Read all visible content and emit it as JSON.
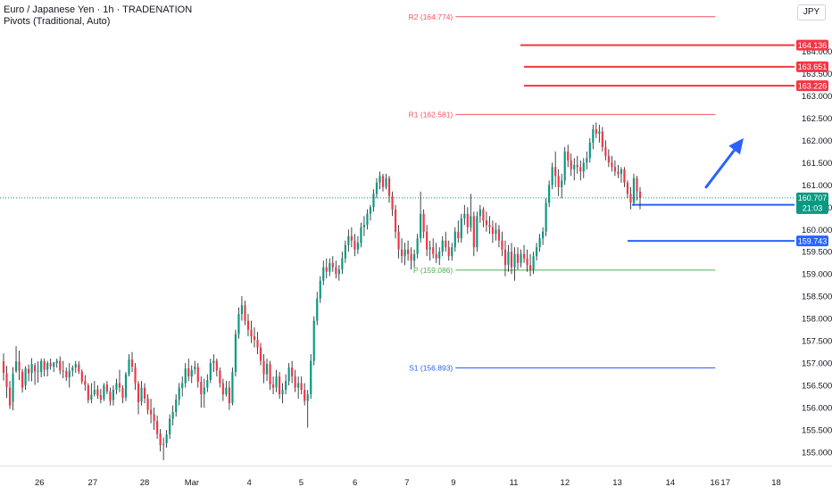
{
  "header": {
    "title": "Euro / Japanese Yen · 1h · TRADENATION",
    "indicator": "Pivots (Traditional, Auto)"
  },
  "currency_button": "JPY",
  "colors": {
    "up": "#089981",
    "down": "#f23645",
    "wick": "#131722",
    "support": "#2962ff",
    "resistance": "#f23645",
    "pivot_r": "#f7525f",
    "pivot_p": "#4caf50",
    "pivot_s": "#2962ff",
    "arrow": "#2962ff",
    "last_price_bg": "#089981",
    "axis_text": "#131722"
  },
  "chart_data": {
    "type": "candlestick",
    "y_axis": {
      "ylim": [
        154.7,
        165.15
      ],
      "ticks": [
        "155.000",
        "155.500",
        "156.000",
        "156.500",
        "157.000",
        "157.500",
        "158.000",
        "158.500",
        "159.000",
        "159.500",
        "160.000",
        "160.500",
        "161.000",
        "161.500",
        "162.000",
        "162.500",
        "163.000",
        "163.500",
        "164.000"
      ]
    },
    "x_axis": {
      "labels": [
        {
          "label": "26",
          "pos": 0.0475
        },
        {
          "label": "27",
          "pos": 0.1114
        },
        {
          "label": "28",
          "pos": 0.1738
        },
        {
          "label": "Mar",
          "pos": 0.2306
        },
        {
          "label": "4",
          "pos": 0.2995
        },
        {
          "label": "5",
          "pos": 0.362
        },
        {
          "label": "6",
          "pos": 0.4266
        },
        {
          "label": "7",
          "pos": 0.4891
        },
        {
          "label": "9",
          "pos": 0.545
        },
        {
          "label": "11",
          "pos": 0.6175
        },
        {
          "label": "12",
          "pos": 0.679
        },
        {
          "label": "13",
          "pos": 0.742
        },
        {
          "label": "14",
          "pos": 0.8057
        },
        {
          "label": "16",
          "pos": 0.8591
        },
        {
          "label": "17",
          "pos": 0.872
        },
        {
          "label": "18",
          "pos": 0.933
        }
      ]
    },
    "pivots": [
      {
        "label": "R2 (164.774)",
        "value": 164.774,
        "start": 0.5475,
        "end": 0.8598,
        "kind": "r"
      },
      {
        "label": "R1 (162.581)",
        "value": 162.581,
        "start": 0.5475,
        "end": 0.8598,
        "kind": "r"
      },
      {
        "label": "P (159.086)",
        "value": 159.086,
        "start": 0.5475,
        "end": 0.8598,
        "kind": "p"
      },
      {
        "label": "S1 (156.893)",
        "value": 156.893,
        "start": 0.5475,
        "end": 0.8598,
        "kind": "s"
      }
    ],
    "levels": [
      {
        "value": 164.136,
        "label": "164.136",
        "start": 0.6255,
        "kind": "resistance"
      },
      {
        "value": 163.651,
        "label": "163.651",
        "start": 0.6298,
        "kind": "resistance"
      },
      {
        "value": 163.226,
        "label": "163.226",
        "start": 0.6298,
        "kind": "resistance"
      },
      {
        "value": 160.554,
        "label": "160.554",
        "start": 0.7597,
        "kind": "support"
      },
      {
        "value": 159.743,
        "label": "159.743",
        "start": 0.7543,
        "kind": "support"
      }
    ],
    "last_price": {
      "value": 160.707,
      "label": "160.707",
      "countdown": "21:03"
    },
    "arrow": {
      "from": [
        0.8487,
        160.95
      ],
      "to": [
        0.8937,
        162.05
      ]
    },
    "candles": [
      [
        157.04,
        157.22,
        156.61,
        156.78
      ],
      [
        156.77,
        156.94,
        156.22,
        156.46
      ],
      [
        156.45,
        156.6,
        155.97,
        156.05
      ],
      [
        156.13,
        156.91,
        155.94,
        156.76
      ],
      [
        156.82,
        157.38,
        156.78,
        157.04
      ],
      [
        157.03,
        157.28,
        156.62,
        156.83
      ],
      [
        156.81,
        156.87,
        156.34,
        156.45
      ],
      [
        156.5,
        156.93,
        156.4,
        156.88
      ],
      [
        156.87,
        156.97,
        156.59,
        156.77
      ],
      [
        156.78,
        157.11,
        156.59,
        156.98
      ],
      [
        156.95,
        157.0,
        156.51,
        156.81
      ],
      [
        156.81,
        157.04,
        156.56,
        156.83
      ],
      [
        156.8,
        157.1,
        156.68,
        157.05
      ],
      [
        157.04,
        157.1,
        156.7,
        156.85
      ],
      [
        156.85,
        157.05,
        156.7,
        157.0
      ],
      [
        157.0,
        157.1,
        156.85,
        156.93
      ],
      [
        156.92,
        157.0,
        156.8,
        157.02
      ],
      [
        157.0,
        157.1,
        156.9,
        157.05
      ],
      [
        157.05,
        157.15,
        156.75,
        156.83
      ],
      [
        156.83,
        157.05,
        156.66,
        156.82
      ],
      [
        156.82,
        156.9,
        156.6,
        156.68
      ],
      [
        156.68,
        157.0,
        156.45,
        156.83
      ],
      [
        156.83,
        156.95,
        156.7,
        156.9
      ],
      [
        156.9,
        157.05,
        156.78,
        156.98
      ],
      [
        156.97,
        157.04,
        156.76,
        156.81
      ],
      [
        156.81,
        156.86,
        156.53,
        156.59
      ],
      [
        156.6,
        156.73,
        156.38,
        156.51
      ],
      [
        156.5,
        156.55,
        156.1,
        156.17
      ],
      [
        156.18,
        156.55,
        156.1,
        156.29
      ],
      [
        156.3,
        156.6,
        156.25,
        156.4
      ],
      [
        156.41,
        156.5,
        156.2,
        156.27
      ],
      [
        156.28,
        156.42,
        156.1,
        156.18
      ],
      [
        156.2,
        156.55,
        156.15,
        156.5
      ],
      [
        156.52,
        156.6,
        156.3,
        156.36
      ],
      [
        156.36,
        156.45,
        156.05,
        156.15
      ],
      [
        156.17,
        156.5,
        156.05,
        156.4
      ],
      [
        156.4,
        156.65,
        156.3,
        156.55
      ],
      [
        156.55,
        156.85,
        156.35,
        156.45
      ],
      [
        156.44,
        156.5,
        156.1,
        156.22
      ],
      [
        156.23,
        156.8,
        156.15,
        156.75
      ],
      [
        156.75,
        157.2,
        156.7,
        157.08
      ],
      [
        157.08,
        157.25,
        156.8,
        156.92
      ],
      [
        156.91,
        157.0,
        156.4,
        156.55
      ],
      [
        156.54,
        156.6,
        155.85,
        156.12
      ],
      [
        156.14,
        156.6,
        156.05,
        156.45
      ],
      [
        156.45,
        156.55,
        156.1,
        156.2
      ],
      [
        156.21,
        156.3,
        155.85,
        155.95
      ],
      [
        155.95,
        156.2,
        155.65,
        155.85
      ],
      [
        155.85,
        156.0,
        155.5,
        155.7
      ],
      [
        155.7,
        155.82,
        155.3,
        155.41
      ],
      [
        155.42,
        155.52,
        155.02,
        155.16
      ],
      [
        155.17,
        155.33,
        154.82,
        155.19
      ],
      [
        155.2,
        155.5,
        155.1,
        155.4
      ],
      [
        155.4,
        155.85,
        155.3,
        155.75
      ],
      [
        155.75,
        156.05,
        155.6,
        155.9
      ],
      [
        155.9,
        156.3,
        155.8,
        156.18
      ],
      [
        156.18,
        156.55,
        156.05,
        156.45
      ],
      [
        156.44,
        156.7,
        156.25,
        156.55
      ],
      [
        156.55,
        157.0,
        156.45,
        156.88
      ],
      [
        156.88,
        157.1,
        156.6,
        156.7
      ],
      [
        156.7,
        156.95,
        156.55,
        156.85
      ],
      [
        156.86,
        157.05,
        156.75,
        156.92
      ],
      [
        156.91,
        157.0,
        156.45,
        156.58
      ],
      [
        156.58,
        156.7,
        156.0,
        156.3
      ],
      [
        156.3,
        156.65,
        156.0,
        156.45
      ],
      [
        156.45,
        156.75,
        156.35,
        156.62
      ],
      [
        156.62,
        157.1,
        156.55,
        157.0
      ],
      [
        157.0,
        157.2,
        156.8,
        157.05
      ],
      [
        157.05,
        157.1,
        156.7,
        156.83
      ],
      [
        156.83,
        156.9,
        156.45,
        156.55
      ],
      [
        156.55,
        156.65,
        156.15,
        156.3
      ],
      [
        156.3,
        156.6,
        156.25,
        156.45
      ],
      [
        156.45,
        156.6,
        155.95,
        156.1
      ],
      [
        156.1,
        156.9,
        156.05,
        156.8
      ],
      [
        156.8,
        157.75,
        156.7,
        157.65
      ],
      [
        157.65,
        158.25,
        157.55,
        158.1
      ],
      [
        158.1,
        158.5,
        157.95,
        158.3
      ],
      [
        158.3,
        158.4,
        157.85,
        157.95
      ],
      [
        157.95,
        158.1,
        157.6,
        157.75
      ],
      [
        157.75,
        157.95,
        157.45,
        157.6
      ],
      [
        157.6,
        157.8,
        157.35,
        157.52
      ],
      [
        157.52,
        157.7,
        157.2,
        157.35
      ],
      [
        157.35,
        157.45,
        156.95,
        157.05
      ],
      [
        157.05,
        157.2,
        156.55,
        156.75
      ],
      [
        156.75,
        157.1,
        156.6,
        156.98
      ],
      [
        156.98,
        157.05,
        156.4,
        156.52
      ],
      [
        156.52,
        156.7,
        156.3,
        156.45
      ],
      [
        156.45,
        156.85,
        156.35,
        156.7
      ],
      [
        156.7,
        156.8,
        156.2,
        156.3
      ],
      [
        156.3,
        156.55,
        156.1,
        156.4
      ],
      [
        156.4,
        156.75,
        156.3,
        156.6
      ],
      [
        156.6,
        157.0,
        156.5,
        156.9
      ],
      [
        156.9,
        157.05,
        156.55,
        156.7
      ],
      [
        156.7,
        156.85,
        156.35,
        156.45
      ],
      [
        156.45,
        156.7,
        156.2,
        156.55
      ],
      [
        156.55,
        156.7,
        156.3,
        156.4
      ],
      [
        156.4,
        156.55,
        156.05,
        156.15
      ],
      [
        156.15,
        156.4,
        155.55,
        156.3
      ],
      [
        156.3,
        157.2,
        156.2,
        157.05
      ],
      [
        157.05,
        158.05,
        156.95,
        157.95
      ],
      [
        157.95,
        158.6,
        157.85,
        158.45
      ],
      [
        158.45,
        158.95,
        158.35,
        158.85
      ],
      [
        158.85,
        159.3,
        158.75,
        159.15
      ],
      [
        159.15,
        159.35,
        158.9,
        159.05
      ],
      [
        159.05,
        159.35,
        158.95,
        159.25
      ],
      [
        159.25,
        159.4,
        159.05,
        159.15
      ],
      [
        159.15,
        159.3,
        158.9,
        159.0
      ],
      [
        159.0,
        159.2,
        158.85,
        159.1
      ],
      [
        159.1,
        159.5,
        159.0,
        159.35
      ],
      [
        159.35,
        159.75,
        159.25,
        159.65
      ],
      [
        159.65,
        160.0,
        159.5,
        159.85
      ],
      [
        159.85,
        160.05,
        159.6,
        159.75
      ],
      [
        159.75,
        159.9,
        159.4,
        159.55
      ],
      [
        159.55,
        159.85,
        159.45,
        159.7
      ],
      [
        159.7,
        160.15,
        159.6,
        160.05
      ],
      [
        160.05,
        160.3,
        159.85,
        160.1
      ],
      [
        160.1,
        160.45,
        160.0,
        160.35
      ],
      [
        160.35,
        160.55,
        160.2,
        160.5
      ],
      [
        160.5,
        160.9,
        160.4,
        160.8
      ],
      [
        160.8,
        161.15,
        160.7,
        161.05
      ],
      [
        161.05,
        161.3,
        160.9,
        161.2
      ],
      [
        161.2,
        161.25,
        160.85,
        160.95
      ],
      [
        160.95,
        161.25,
        160.9,
        161.15
      ],
      [
        161.15,
        161.2,
        160.6,
        160.75
      ],
      [
        160.75,
        160.85,
        160.3,
        160.45
      ],
      [
        160.45,
        160.55,
        159.8,
        159.95
      ],
      [
        159.95,
        160.1,
        159.35,
        159.55
      ],
      [
        159.55,
        159.8,
        159.25,
        159.4
      ],
      [
        159.4,
        159.7,
        159.2,
        159.55
      ],
      [
        159.55,
        159.75,
        159.3,
        159.45
      ],
      [
        159.45,
        159.6,
        159.1,
        159.3
      ],
      [
        159.3,
        159.55,
        159.15,
        159.45
      ],
      [
        159.45,
        159.9,
        159.35,
        159.8
      ],
      [
        159.8,
        160.85,
        159.7,
        160.35
      ],
      [
        160.35,
        160.45,
        159.8,
        159.95
      ],
      [
        159.95,
        160.1,
        159.4,
        159.55
      ],
      [
        159.55,
        159.75,
        159.3,
        159.6
      ],
      [
        159.6,
        159.8,
        159.35,
        159.45
      ],
      [
        159.45,
        159.7,
        159.25,
        159.35
      ],
      [
        159.35,
        159.6,
        159.2,
        159.5
      ],
      [
        159.5,
        159.85,
        159.4,
        159.75
      ],
      [
        159.75,
        159.95,
        159.5,
        159.6
      ],
      [
        159.6,
        159.75,
        159.3,
        159.4
      ],
      [
        159.4,
        159.7,
        159.3,
        159.6
      ],
      [
        159.6,
        160.05,
        159.5,
        159.95
      ],
      [
        159.95,
        160.2,
        159.7,
        159.8
      ],
      [
        159.8,
        160.35,
        159.7,
        160.25
      ],
      [
        160.25,
        160.55,
        160.1,
        160.35
      ],
      [
        160.35,
        160.5,
        159.9,
        160.05
      ],
      [
        160.05,
        160.8,
        159.95,
        160.3
      ],
      [
        160.3,
        160.4,
        159.4,
        159.6
      ],
      [
        159.6,
        160.4,
        159.5,
        160.3
      ],
      [
        160.3,
        160.55,
        160.15,
        160.45
      ],
      [
        160.45,
        160.5,
        160.05,
        160.2
      ],
      [
        160.2,
        160.4,
        159.95,
        160.1
      ],
      [
        160.1,
        160.3,
        159.9,
        160.05
      ],
      [
        160.05,
        160.2,
        159.7,
        159.9
      ],
      [
        159.9,
        160.15,
        159.75,
        160.0
      ],
      [
        160.0,
        160.1,
        159.6,
        159.75
      ],
      [
        159.75,
        159.95,
        159.4,
        159.55
      ],
      [
        159.55,
        159.75,
        158.95,
        159.2
      ],
      [
        159.2,
        159.65,
        159.05,
        159.5
      ],
      [
        159.5,
        159.7,
        159.0,
        159.15
      ],
      [
        159.15,
        159.6,
        158.85,
        159.45
      ],
      [
        159.45,
        159.6,
        159.1,
        159.25
      ],
      [
        159.25,
        159.55,
        159.15,
        159.45
      ],
      [
        159.45,
        159.65,
        159.25,
        159.35
      ],
      [
        159.35,
        159.55,
        159.05,
        159.2
      ],
      [
        159.2,
        159.45,
        158.95,
        159.1
      ],
      [
        159.1,
        159.5,
        159.0,
        159.4
      ],
      [
        159.4,
        159.7,
        159.3,
        159.6
      ],
      [
        159.6,
        159.9,
        159.5,
        159.8
      ],
      [
        159.8,
        160.05,
        159.65,
        159.95
      ],
      [
        159.95,
        160.7,
        159.85,
        160.6
      ],
      [
        160.6,
        161.1,
        160.5,
        161.0
      ],
      [
        161.0,
        161.5,
        160.9,
        161.4
      ],
      [
        161.4,
        161.75,
        160.95,
        161.2
      ],
      [
        161.2,
        161.35,
        160.75,
        160.95
      ],
      [
        160.95,
        161.25,
        160.7,
        161.1
      ],
      [
        161.1,
        161.85,
        161.0,
        161.75
      ],
      [
        161.75,
        161.9,
        161.4,
        161.55
      ],
      [
        161.55,
        161.7,
        161.2,
        161.35
      ],
      [
        161.35,
        161.6,
        161.1,
        161.45
      ],
      [
        161.45,
        161.65,
        161.25,
        161.4
      ],
      [
        161.4,
        161.55,
        161.1,
        161.3
      ],
      [
        161.3,
        161.6,
        161.15,
        161.5
      ],
      [
        161.5,
        161.75,
        161.35,
        161.6
      ],
      [
        161.6,
        162.05,
        161.5,
        161.95
      ],
      [
        161.95,
        162.35,
        161.8,
        162.25
      ],
      [
        162.25,
        162.4,
        162.05,
        162.15
      ],
      [
        162.15,
        162.35,
        161.95,
        162.2
      ],
      [
        162.2,
        162.3,
        161.75,
        161.85
      ],
      [
        161.85,
        162.0,
        161.55,
        161.65
      ],
      [
        161.65,
        161.8,
        161.4,
        161.5
      ],
      [
        161.5,
        161.65,
        161.3,
        161.4
      ],
      [
        161.4,
        161.55,
        161.2,
        161.3
      ],
      [
        161.3,
        161.45,
        161.15,
        161.25
      ],
      [
        161.25,
        161.4,
        161.05,
        161.35
      ],
      [
        161.35,
        161.4,
        160.95,
        161.05
      ],
      [
        161.05,
        161.1,
        160.7,
        160.8
      ],
      [
        160.8,
        160.95,
        160.45,
        160.6
      ],
      [
        160.6,
        161.25,
        160.55,
        161.15
      ],
      [
        161.15,
        161.2,
        160.65,
        160.85
      ],
      [
        160.85,
        160.95,
        160.45,
        160.71
      ]
    ]
  }
}
